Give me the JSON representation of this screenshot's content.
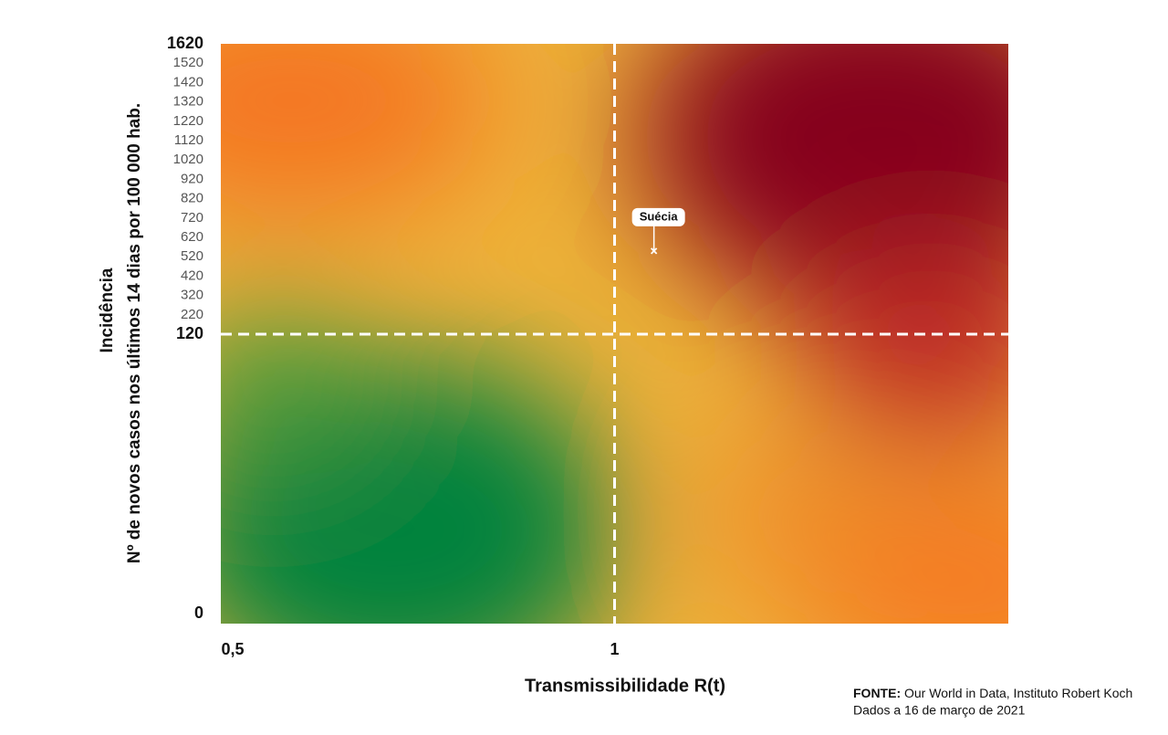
{
  "chart_data": {
    "type": "scatter",
    "x_label": "Transmissibilidade R(t)",
    "y_label": [
      "Incidência",
      "Nº de novos casos nos últimos 14 dias por 100 000 hab."
    ],
    "xlim": [
      0.5,
      1.5
    ],
    "xticks": [
      {
        "value": 0.5,
        "label": "0,5"
      },
      1
    ],
    "ylim": [
      0,
      1620
    ],
    "yticks": [
      0,
      120,
      220,
      320,
      420,
      520,
      620,
      720,
      820,
      920,
      1020,
      1120,
      1220,
      1320,
      1420,
      1520,
      1620
    ],
    "points": [
      {
        "label": "Suécia",
        "x": 1.05,
        "y": 550
      }
    ],
    "source": {
      "label": "FONTE:",
      "text": "Our World in Data, Instituto Robert Koch"
    },
    "note": "Dados a 16 de março de 2021"
  }
}
